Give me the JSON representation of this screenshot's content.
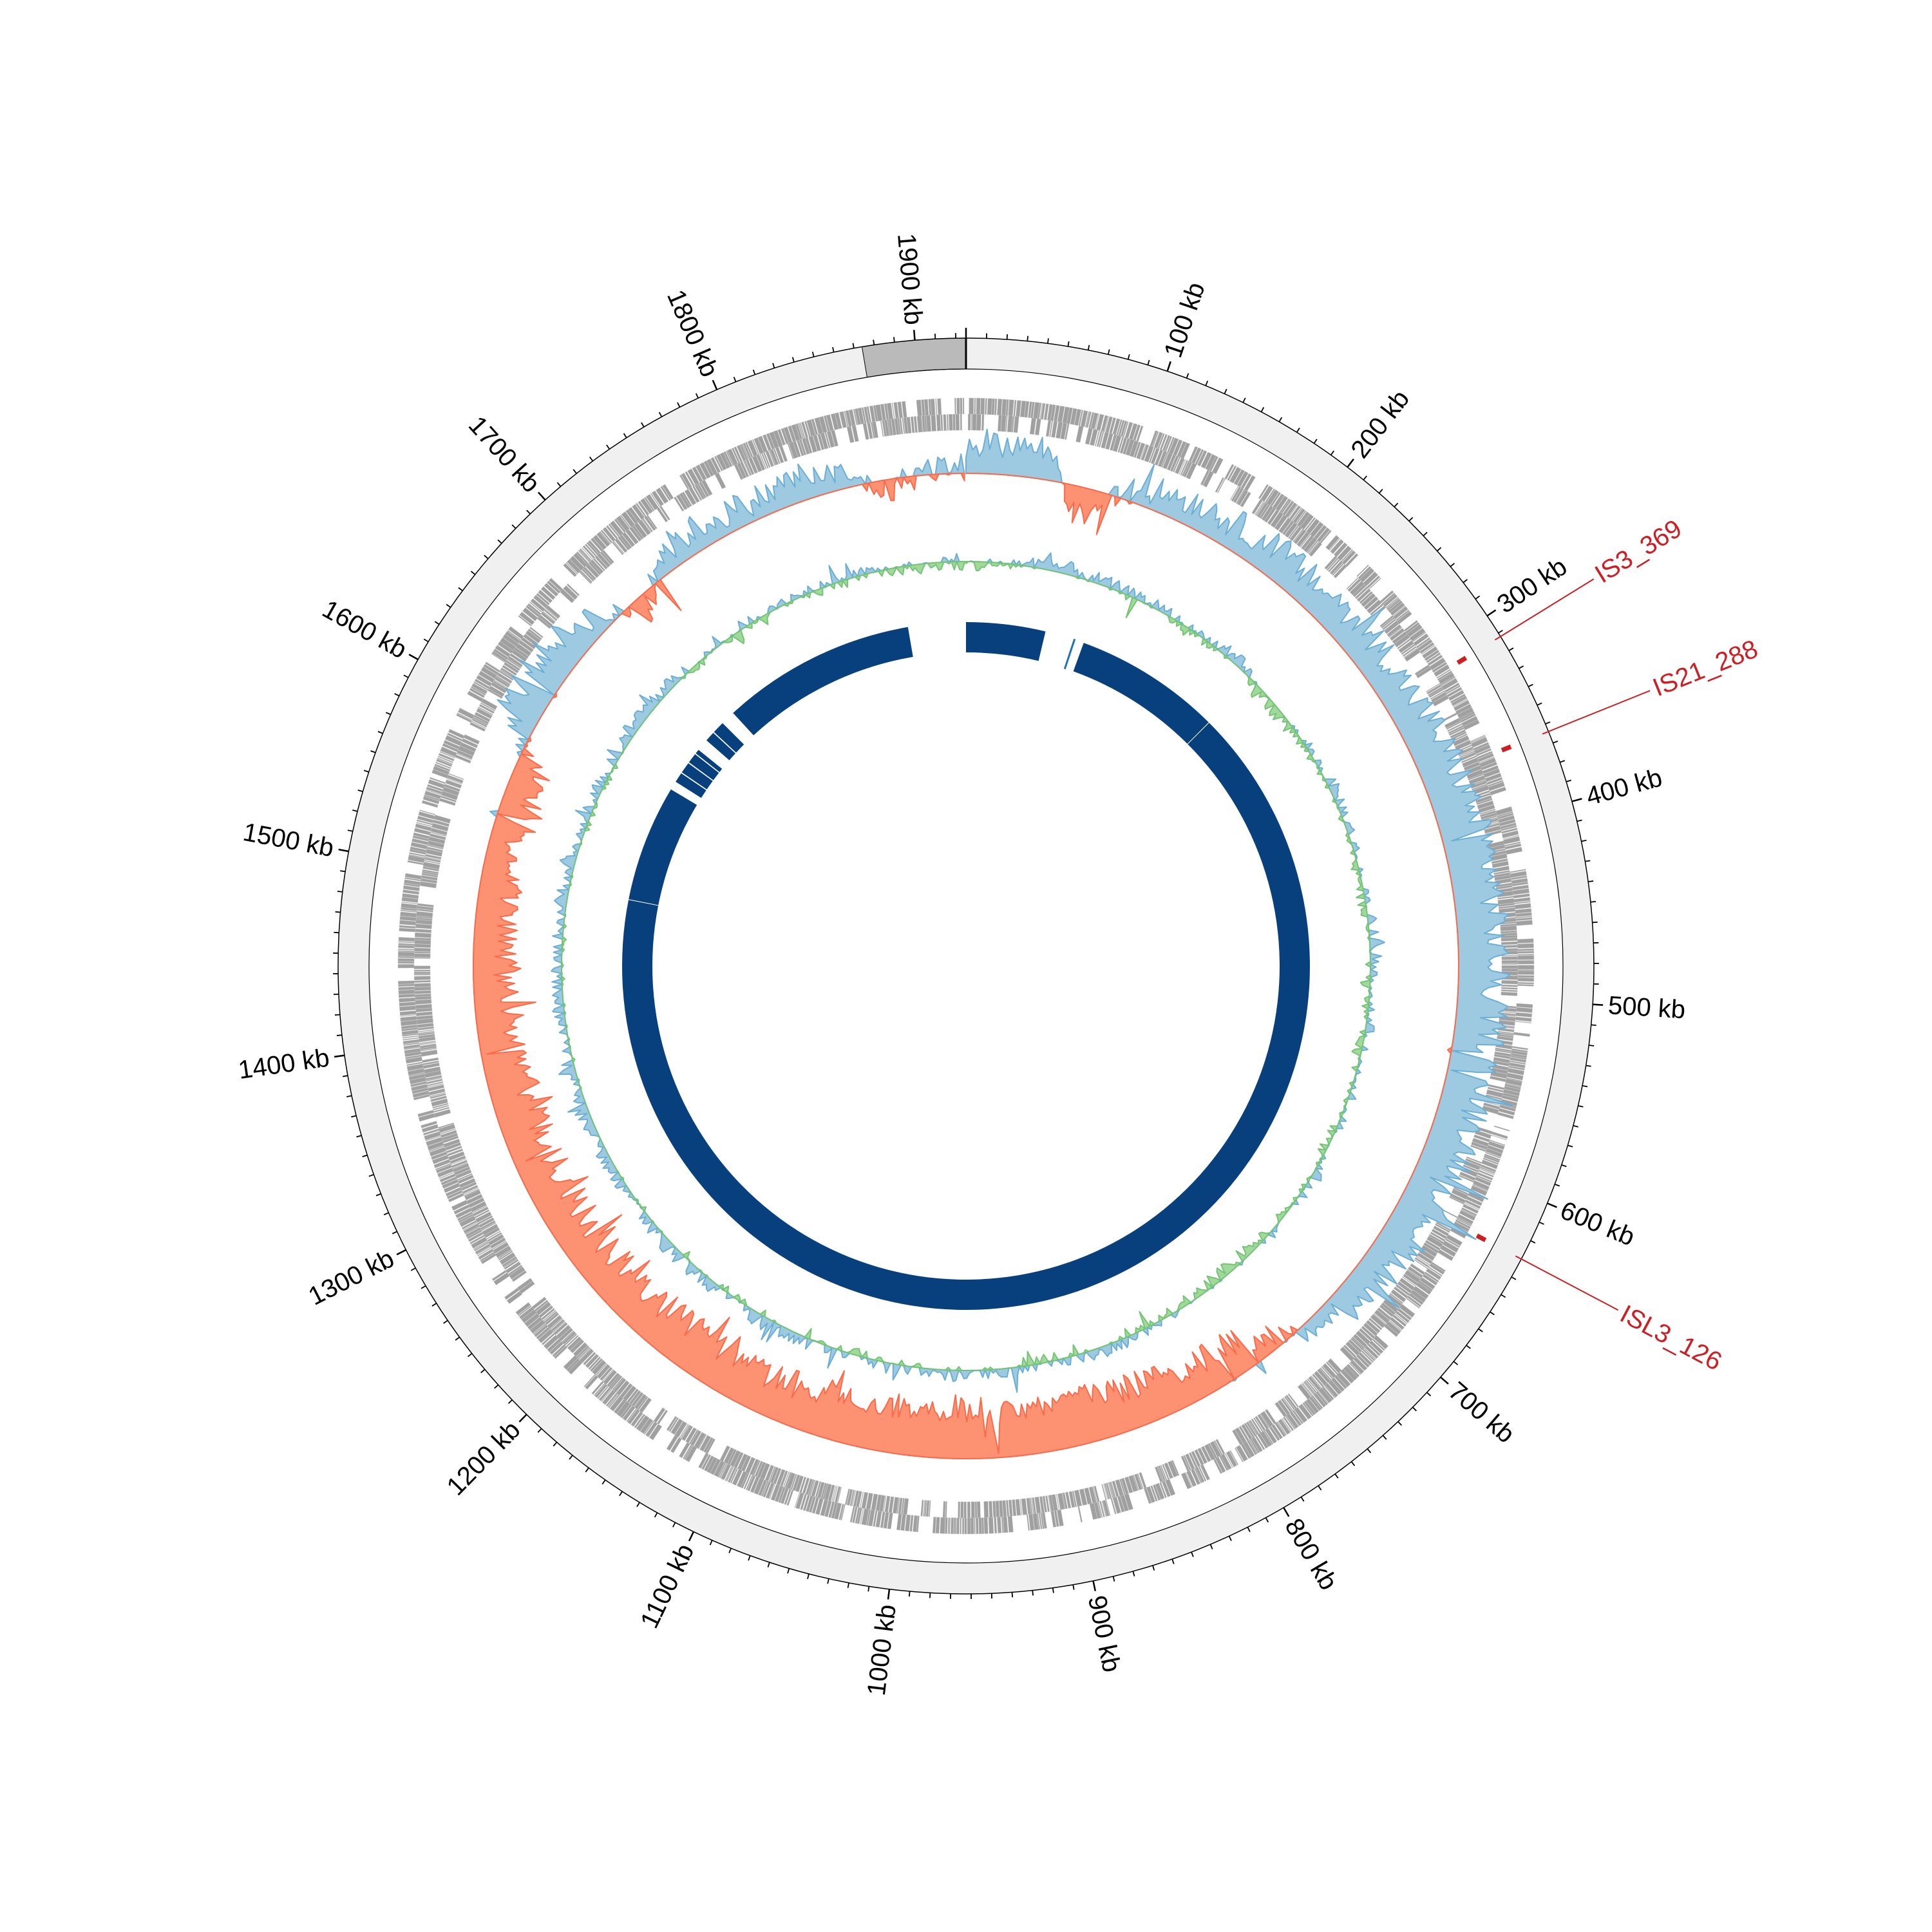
{
  "chart_data": {
    "type": "circular-genome",
    "genome_length_kb": 1925,
    "major_tick_kb": 100,
    "minor_tick_kb": 10,
    "tick_labels": [
      {
        "kb": 100,
        "label": "100 kb"
      },
      {
        "kb": 200,
        "label": "200 kb"
      },
      {
        "kb": 300,
        "label": "300 kb"
      },
      {
        "kb": 400,
        "label": "400 kb"
      },
      {
        "kb": 500,
        "label": "500 kb"
      },
      {
        "kb": 600,
        "label": "600 kb"
      },
      {
        "kb": 700,
        "label": "700 kb"
      },
      {
        "kb": 800,
        "label": "800 kb"
      },
      {
        "kb": 900,
        "label": "900 kb"
      },
      {
        "kb": 1000,
        "label": "1000 kb"
      },
      {
        "kb": 1100,
        "label": "1100 kb"
      },
      {
        "kb": 1200,
        "label": "1200 kb"
      },
      {
        "kb": 1300,
        "label": "1300 kb"
      },
      {
        "kb": 1400,
        "label": "1400 kb"
      },
      {
        "kb": 1500,
        "label": "1500 kb"
      },
      {
        "kb": 1600,
        "label": "1600 kb"
      },
      {
        "kb": 1700,
        "label": "1700 kb"
      },
      {
        "kb": 1800,
        "label": "1800 kb"
      },
      {
        "kb": 1900,
        "label": "1900 kb"
      }
    ],
    "highlighted_region_kb": [
      1874,
      1925
    ],
    "mobile_elements": [
      {
        "label": "IS3_369",
        "position_kb": 312
      },
      {
        "label": "IS21_288",
        "position_kb": 364
      },
      {
        "label": "ISL3_126",
        "position_kb": 630
      }
    ],
    "gc_skew": {
      "bin_kb": 25,
      "values": [
        0.45,
        0.5,
        0.45,
        -0.5,
        0.15,
        0.35,
        0.4,
        0.4,
        0.45,
        0.4,
        0.45,
        0.5,
        0.45,
        0.5,
        0.55,
        0.6,
        0.6,
        0.65,
        0.6,
        0.6,
        0.55,
        0.6,
        0.55,
        0.6,
        0.65,
        0.6,
        0.55,
        0.5,
        0.4,
        0.3,
        -0.2,
        -0.5,
        -0.55,
        -0.6,
        -0.65,
        -0.7,
        -0.7,
        -0.75,
        -0.75,
        -0.8,
        -0.75,
        -0.7,
        -0.7,
        -0.65,
        -0.6,
        -0.65,
        -0.6,
        -0.65,
        -0.55,
        -0.6,
        -0.55,
        -0.6,
        -0.6,
        -0.55,
        -0.6,
        -0.55,
        -0.5,
        -0.55,
        -0.5,
        -0.5,
        -0.55,
        -0.45,
        -0.5,
        -0.35,
        0.5,
        0.55,
        0.5,
        0.3,
        -0.3,
        0.3,
        0.35,
        0.3,
        0.3,
        0.4,
        0.2,
        -0.2,
        0.1
      ]
    },
    "gc_content": {
      "bin_kb": 25,
      "values": [
        -0.1,
        -0.05,
        0.1,
        0.15,
        0.1,
        0.05,
        0.1,
        -0.05,
        0.05,
        0.1,
        -0.15,
        -0.1,
        -0.05,
        0.05,
        0.1,
        0.05,
        0,
        -0.05,
        0.05,
        0.1,
        -0.1,
        0.05,
        -0.05,
        0.1,
        0.05,
        -0.1,
        0.1,
        -0.05,
        0.05,
        -0.1,
        -0.15,
        -0.1,
        -0.05,
        0.05,
        0.1,
        0.05,
        -0.05,
        0.1,
        0.05,
        0.1,
        0.05,
        0.1,
        -0.05,
        0.1,
        0.15,
        0.1,
        0.05,
        0.1,
        0.15,
        0.1,
        0.05,
        0.1,
        0.15,
        0.2,
        0.15,
        0.1,
        0.15,
        0.1,
        0.05,
        0.1,
        0.15,
        0.1,
        0.05,
        0.1,
        0.05,
        0.15,
        0.2,
        0.1,
        0.05,
        -0.05,
        0.05,
        0.1,
        0.05,
        -0.05,
        0.05,
        -0.1,
        -0.05
      ]
    },
    "contig_segments_kb": [
      [
        0,
        71.5
      ],
      [
        98,
        98.6
      ],
      [
        107,
        240
      ],
      [
        240.6,
        1503
      ],
      [
        1503.6,
        1609
      ],
      [
        1617,
        1626
      ],
      [
        1627,
        1637
      ],
      [
        1638,
        1647
      ],
      [
        1648,
        1652
      ],
      [
        1663,
        1672
      ],
      [
        1673,
        1684
      ],
      [
        1697,
        1873
      ]
    ],
    "colors": {
      "ring_fill": "#f0f0f0",
      "highlight_fill": "#bababa",
      "gene": "#a0a0a0",
      "skew_pos_fill": "#9ecae1",
      "skew_pos_line": "#6baed6",
      "skew_neg_fill": "#fc9272",
      "skew_neg_line": "#fb6a4a",
      "gc_pos_fill": "#9ecae1",
      "gc_pos_line": "#6baed6",
      "gc_neg_fill": "#a1d99b",
      "gc_neg_line": "#74c476",
      "contig": "#08407e",
      "contig_thin": "#2171b5",
      "mobile_element": "#cc1f24"
    }
  }
}
